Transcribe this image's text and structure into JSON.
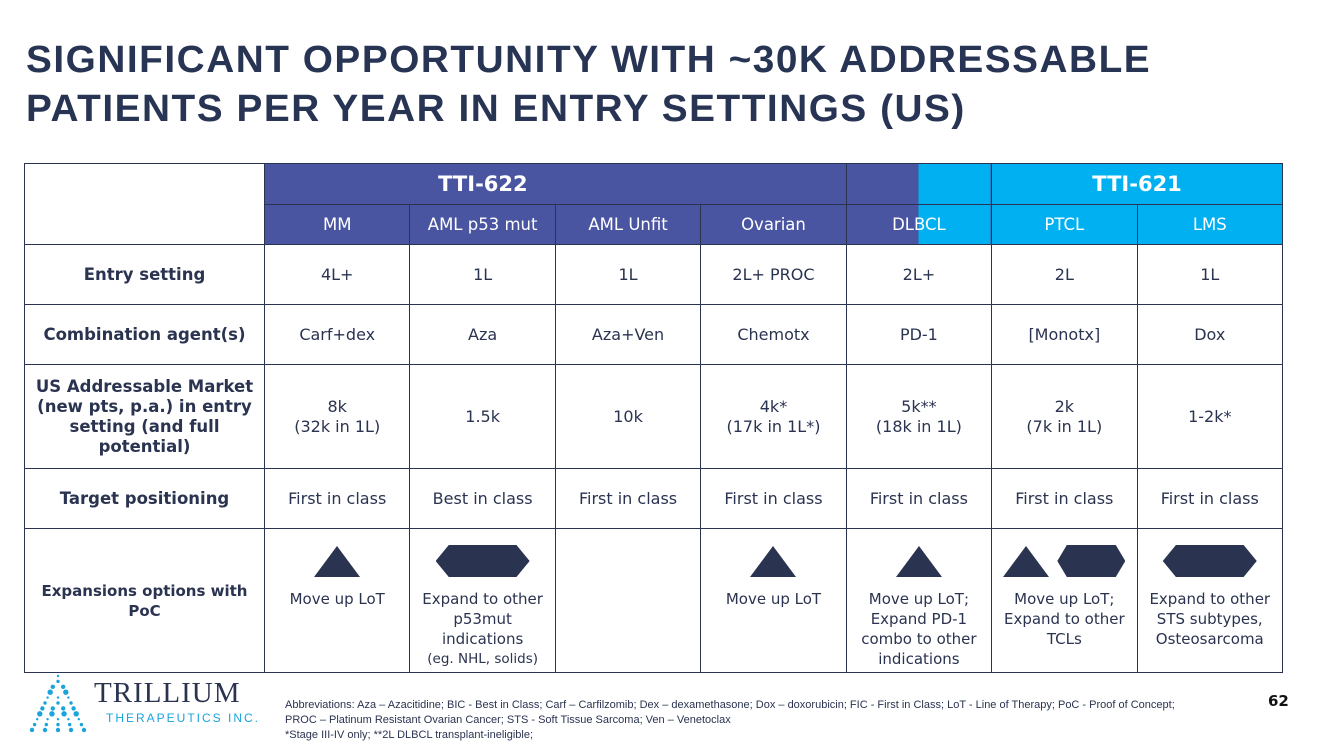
{
  "title_line1": "SIGNIFICANT OPPORTUNITY WITH ~30K ADDRESSABLE",
  "title_line2": "PATIENTS PER YEAR IN ENTRY SETTINGS (US)",
  "colors": {
    "tti622": "#4a55a2",
    "tti621": "#00b0f0",
    "text": "#2a3350"
  },
  "groups": {
    "tti622": "TTI-622",
    "tti621": "TTI-621"
  },
  "indications": [
    "MM",
    "AML p53 mut",
    "AML Unfit",
    "Ovarian",
    "DLBCL",
    "PTCL",
    "LMS"
  ],
  "rows": {
    "entry": {
      "label": "Entry setting",
      "values": [
        "4L+",
        "1L",
        "1L",
        "2L+ PROC",
        "2L+",
        "2L",
        "1L"
      ]
    },
    "combo": {
      "label": "Combination agent(s)",
      "values": [
        "Carf+dex",
        "Aza",
        "Aza+Ven",
        "Chemotx",
        "PD-1",
        "[Monotx]",
        "Dox"
      ]
    },
    "market": {
      "label": "US Addressable Market (new pts, p.a.) in entry setting (and full potential)",
      "values": [
        [
          "8k",
          "(32k in 1L)"
        ],
        [
          "1.5k",
          ""
        ],
        [
          "10k",
          ""
        ],
        [
          "4k*",
          "(17k in 1L*)"
        ],
        [
          "5k**",
          "(18k in 1L)"
        ],
        [
          "2k",
          "(7k in 1L)"
        ],
        [
          "1-2k*",
          ""
        ]
      ]
    },
    "target": {
      "label": "Target positioning",
      "values": [
        "First in class",
        "Best in class",
        "First in class",
        "First in class",
        "First in class",
        "First in class",
        "First in class"
      ]
    },
    "expansion": {
      "label": "Expansions options with PoC",
      "values": [
        [
          "Move up LoT"
        ],
        [
          "Expand to other",
          "p53mut",
          "indications",
          "(eg. NHL, solids)"
        ],
        [],
        [
          "Move up LoT"
        ],
        [
          "Move up LoT;",
          "Expand PD-1",
          "combo to other",
          "indications"
        ],
        [
          "Move up LoT;",
          "Expand to other",
          "TCLs"
        ],
        [
          "Expand to other",
          "STS subtypes,",
          "Osteosarcoma"
        ]
      ]
    }
  },
  "logo": {
    "name": "TRILLIUM",
    "sub": "THERAPEUTICS INC."
  },
  "footnotes": [
    "Abbreviations: Aza – Azacitidine; BIC - Best in Class; Carf – Carfilzomib; Dex – dexamethasone; Dox – doxorubicin; FIC - First in Class; LoT - Line of Therapy; PoC - Proof of Concept; PROC – Platinum Resistant Ovarian Cancer; STS - Soft Tissue Sarcoma; Ven – Venetoclax",
    "*Stage III-IV only; **2L DLBCL transplant-ineligible;"
  ],
  "page_number": "62"
}
